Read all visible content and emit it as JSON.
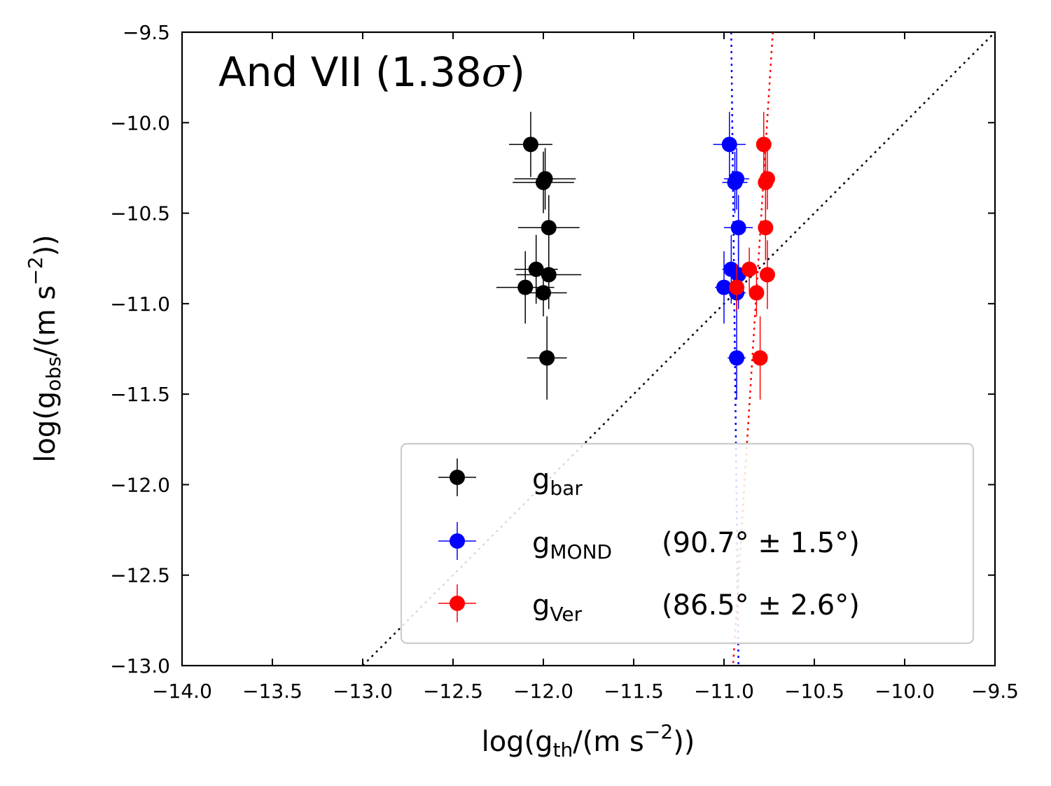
{
  "chart_data": {
    "type": "scatter",
    "title": "And VII (1.38σ)",
    "title_main": "And VII (1.38",
    "title_sigma": "σ",
    "title_close": ")",
    "xlabel": "log(g_th/(m s^-2))",
    "ylabel": "log(g_obs/(m s^-2))",
    "xlabel_parts": {
      "pre": "log(g",
      "sub": "th",
      "mid": "/(m s",
      "sup": "−2",
      "post": "))"
    },
    "ylabel_parts": {
      "pre": "log(g",
      "sub": "obs",
      "mid": "/(m s",
      "sup": "−2",
      "post": "))"
    },
    "xlim": [
      -14.0,
      -9.5
    ],
    "ylim": [
      -13.0,
      -9.5
    ],
    "xticks": [
      -14.0,
      -13.5,
      -13.0,
      -12.5,
      -12.0,
      -11.5,
      -11.0,
      -10.5,
      -10.0,
      -9.5
    ],
    "yticks": [
      -13.0,
      -12.5,
      -12.0,
      -11.5,
      -11.0,
      -10.5,
      -10.0,
      -9.5
    ],
    "xtick_labels": [
      "−14.0",
      "−13.5",
      "−13.0",
      "−12.5",
      "−12.0",
      "−11.5",
      "−11.0",
      "−10.5",
      "−10.0",
      "−9.5"
    ],
    "ytick_labels": [
      "−13.0",
      "−12.5",
      "−12.0",
      "−11.5",
      "−11.0",
      "−10.5",
      "−10.0",
      "−9.5"
    ],
    "grid": false,
    "legend_position": "lower-right",
    "one_to_one_line": {
      "color": "#000000",
      "style": "dotted",
      "from": [
        -13.0,
        -13.0
      ],
      "to": [
        -9.5,
        -9.5
      ]
    },
    "series": [
      {
        "name": "g_bar",
        "legend_base": "g",
        "legend_sub": "bar",
        "legend_extra": "",
        "color": "#000000",
        "points": [
          {
            "x": -12.07,
            "y": -10.12,
            "xerr": 0.12,
            "yerr": 0.18
          },
          {
            "x": -11.99,
            "y": -10.31,
            "xerr": 0.17,
            "yerr": 0.17
          },
          {
            "x": -12.0,
            "y": -10.33,
            "xerr": 0.17,
            "yerr": 0.17
          },
          {
            "x": -11.97,
            "y": -10.58,
            "xerr": 0.17,
            "yerr": 0.18
          },
          {
            "x": -12.04,
            "y": -10.81,
            "xerr": 0.12,
            "yerr": 0.19
          },
          {
            "x": -11.97,
            "y": -10.84,
            "xerr": 0.18,
            "yerr": 0.19
          },
          {
            "x": -12.1,
            "y": -10.91,
            "xerr": 0.16,
            "yerr": 0.2
          },
          {
            "x": -12.0,
            "y": -10.94,
            "xerr": 0.13,
            "yerr": 0.13
          },
          {
            "x": -11.98,
            "y": -11.3,
            "xerr": 0.11,
            "yerr": 0.23
          }
        ]
      },
      {
        "name": "g_MOND",
        "legend_base": "g",
        "legend_sub": "MOND",
        "legend_extra": "(90.7° ± 1.5°)",
        "color": "#0000ff",
        "angle_deg": 90.7,
        "angle_err_deg": 1.5,
        "fit_line": {
          "from": [
            -10.96,
            -9.5
          ],
          "to": [
            -10.92,
            -13.0
          ]
        },
        "points": [
          {
            "x": -10.97,
            "y": -10.12,
            "xerr": 0.09,
            "yerr": 0.18
          },
          {
            "x": -10.93,
            "y": -10.31,
            "xerr": 0.07,
            "yerr": 0.17
          },
          {
            "x": -10.94,
            "y": -10.33,
            "xerr": 0.07,
            "yerr": 0.17
          },
          {
            "x": -10.92,
            "y": -10.58,
            "xerr": 0.08,
            "yerr": 0.18
          },
          {
            "x": -10.96,
            "y": -10.81,
            "xerr": 0.05,
            "yerr": 0.19
          },
          {
            "x": -10.92,
            "y": -10.84,
            "xerr": 0.07,
            "yerr": 0.19
          },
          {
            "x": -11.0,
            "y": -10.91,
            "xerr": 0.05,
            "yerr": 0.2
          },
          {
            "x": -10.93,
            "y": -10.94,
            "xerr": 0.05,
            "yerr": 0.13
          },
          {
            "x": -10.93,
            "y": -11.3,
            "xerr": 0.05,
            "yerr": 0.23
          }
        ]
      },
      {
        "name": "g_Ver",
        "legend_base": "g",
        "legend_sub": "Ver",
        "legend_extra": "(86.5° ± 2.6°)",
        "color": "#ff0000",
        "angle_deg": 86.5,
        "angle_err_deg": 2.6,
        "fit_line": {
          "from": [
            -10.73,
            -9.5
          ],
          "to": [
            -10.95,
            -13.0
          ]
        },
        "points": [
          {
            "x": -10.78,
            "y": -10.12,
            "xerr": 0.03,
            "yerr": 0.18
          },
          {
            "x": -10.76,
            "y": -10.31,
            "xerr": 0.03,
            "yerr": 0.17
          },
          {
            "x": -10.77,
            "y": -10.33,
            "xerr": 0.03,
            "yerr": 0.17
          },
          {
            "x": -10.77,
            "y": -10.58,
            "xerr": 0.03,
            "yerr": 0.18
          },
          {
            "x": -10.86,
            "y": -10.81,
            "xerr": 0.04,
            "yerr": 0.12
          },
          {
            "x": -10.76,
            "y": -10.84,
            "xerr": 0.03,
            "yerr": 0.19
          },
          {
            "x": -10.93,
            "y": -10.91,
            "xerr": 0.04,
            "yerr": 0.13
          },
          {
            "x": -10.82,
            "y": -10.94,
            "xerr": 0.04,
            "yerr": 0.13
          },
          {
            "x": -10.8,
            "y": -11.3,
            "xerr": 0.04,
            "yerr": 0.23
          }
        ]
      }
    ]
  }
}
